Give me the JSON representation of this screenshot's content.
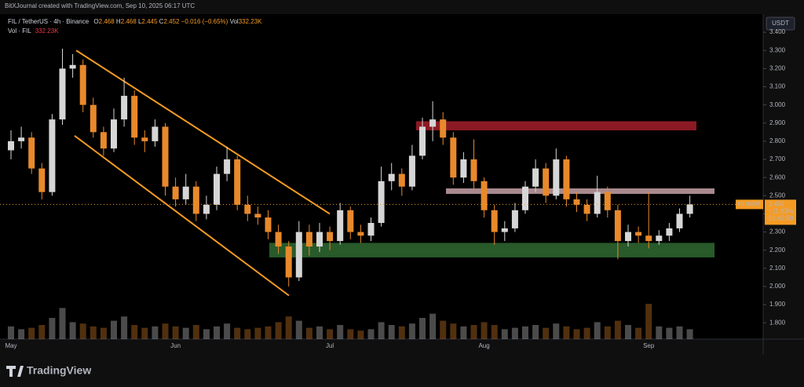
{
  "chart_data": {
    "type": "candlestick",
    "watermark": "BitXJournal created with TradingView.com, Sep 10, 2025 06:17 UTC",
    "symbol": "FIL / TetherUS · 4h · Binance",
    "ohlc_legend": {
      "open_label": "O",
      "open": 2.468,
      "high_label": "H",
      "high": 2.468,
      "low_label": "L",
      "low": 2.445,
      "close_label": "C",
      "close": 2.452,
      "change": "−0.016 (−0.65%)",
      "vol_label": "Vol",
      "vol": "332.23K"
    },
    "volume_legend": {
      "label": "Vol · FIL",
      "value": "332.23K"
    },
    "currency": "USDT",
    "price_tag": {
      "symbol": "FILUSDT",
      "price": 2.452,
      "change": "−11.83%",
      "countdown": "01:42:50"
    },
    "logo": "TradingView",
    "categories": [
      "May",
      null,
      null,
      null,
      null,
      null,
      null,
      null,
      null,
      null,
      null,
      null,
      null,
      null,
      null,
      null,
      "Jun",
      null,
      null,
      null,
      null,
      null,
      null,
      null,
      null,
      null,
      null,
      null,
      null,
      null,
      null,
      "Jul",
      null,
      null,
      null,
      null,
      null,
      null,
      null,
      null,
      null,
      null,
      null,
      null,
      null,
      null,
      "Aug",
      null,
      null,
      null,
      null,
      null,
      null,
      null,
      null,
      null,
      null,
      null,
      null,
      null,
      null,
      null,
      "Sep",
      null,
      null,
      null,
      null
    ],
    "open": [
      2.75,
      2.8,
      2.82,
      2.65,
      2.52,
      2.92,
      3.2,
      3.22,
      3.0,
      2.85,
      2.76,
      2.92,
      3.05,
      2.82,
      2.8,
      2.88,
      2.55,
      2.48,
      2.55,
      2.4,
      2.45,
      2.62,
      2.7,
      2.45,
      2.4,
      2.38,
      2.3,
      2.22,
      2.05,
      2.3,
      2.22,
      2.3,
      2.25,
      2.42,
      2.3,
      2.28,
      2.35,
      2.58,
      2.62,
      2.55,
      2.72,
      2.88,
      2.92,
      2.82,
      2.6,
      2.7,
      2.58,
      2.42,
      2.3,
      2.32,
      2.42,
      2.55,
      2.65,
      2.5,
      2.7,
      2.48,
      2.45,
      2.4,
      2.52,
      2.42,
      2.25,
      2.3,
      2.28,
      2.25,
      2.28,
      2.32,
      2.4
    ],
    "high": [
      2.86,
      2.88,
      2.85,
      2.68,
      2.95,
      3.31,
      3.28,
      3.25,
      3.04,
      2.88,
      2.98,
      3.15,
      3.08,
      2.86,
      2.92,
      2.9,
      2.6,
      2.62,
      2.58,
      2.5,
      2.66,
      2.77,
      2.72,
      2.5,
      2.44,
      2.42,
      2.34,
      2.25,
      2.36,
      2.34,
      2.35,
      2.33,
      2.46,
      2.44,
      2.34,
      2.38,
      2.66,
      2.68,
      2.65,
      2.78,
      2.93,
      3.02,
      2.96,
      2.85,
      2.74,
      2.81,
      2.6,
      2.45,
      2.36,
      2.46,
      2.58,
      2.7,
      2.68,
      2.76,
      2.72,
      2.52,
      2.48,
      2.61,
      2.55,
      2.45,
      2.34,
      2.33,
      2.52,
      2.31,
      2.35,
      2.43,
      2.5
    ],
    "low": [
      2.7,
      2.76,
      2.62,
      2.48,
      2.5,
      2.89,
      3.15,
      2.96,
      2.82,
      2.72,
      2.74,
      2.88,
      2.78,
      2.74,
      2.77,
      2.5,
      2.44,
      2.45,
      2.36,
      2.37,
      2.42,
      2.58,
      2.42,
      2.36,
      2.34,
      2.26,
      2.18,
      2.0,
      2.03,
      2.17,
      2.19,
      2.2,
      2.23,
      2.26,
      2.24,
      2.25,
      2.33,
      2.53,
      2.5,
      2.53,
      2.7,
      2.8,
      2.78,
      2.56,
      2.57,
      2.54,
      2.38,
      2.23,
      2.25,
      2.3,
      2.4,
      2.52,
      2.46,
      2.48,
      2.44,
      2.41,
      2.36,
      2.38,
      2.38,
      2.15,
      2.22,
      2.24,
      2.21,
      2.23,
      2.25,
      2.3,
      2.38
    ],
    "close": [
      2.8,
      2.82,
      2.65,
      2.52,
      2.92,
      3.2,
      3.22,
      3.0,
      2.85,
      2.76,
      2.92,
      3.05,
      2.82,
      2.8,
      2.88,
      2.55,
      2.48,
      2.55,
      2.4,
      2.45,
      2.62,
      2.7,
      2.45,
      2.4,
      2.38,
      2.3,
      2.22,
      2.05,
      2.3,
      2.22,
      2.3,
      2.25,
      2.42,
      2.3,
      2.28,
      2.35,
      2.58,
      2.62,
      2.55,
      2.72,
      2.88,
      2.92,
      2.82,
      2.6,
      2.7,
      2.58,
      2.42,
      2.3,
      2.32,
      2.42,
      2.55,
      2.65,
      2.5,
      2.7,
      2.48,
      2.45,
      2.4,
      2.52,
      2.42,
      2.25,
      2.3,
      2.28,
      2.25,
      2.28,
      2.32,
      2.4,
      2.452
    ],
    "volume": [
      900,
      700,
      800,
      1000,
      1500,
      2200,
      1200,
      1100,
      900,
      800,
      1300,
      1600,
      1000,
      800,
      900,
      1100,
      900,
      800,
      1000,
      700,
      900,
      1100,
      800,
      700,
      800,
      900,
      1200,
      1600,
      1300,
      800,
      900,
      700,
      1000,
      700,
      600,
      700,
      1200,
      1000,
      900,
      1100,
      1500,
      1800,
      1300,
      1100,
      900,
      1000,
      1200,
      1000,
      700,
      800,
      900,
      1000,
      800,
      1100,
      900,
      700,
      800,
      1200,
      900,
      1300,
      1000,
      800,
      2500,
      900,
      800,
      900,
      700
    ],
    "up_color": "#d6d6d6",
    "down_color": "#e8892b",
    "zones": [
      {
        "low": 2.86,
        "high": 2.91,
        "color": "#a31f2c"
      },
      {
        "low": 2.51,
        "high": 2.54,
        "color": "#c7a2a7"
      },
      {
        "low": 2.16,
        "high": 2.24,
        "color": "#2f6a31"
      }
    ],
    "trendlines": [
      {
        "start": 3.3,
        "end": 2.4,
        "color": "#f59b23"
      },
      {
        "start": 2.83,
        "end": 1.95,
        "color": "#f59b23"
      }
    ],
    "ylim": [
      1.71,
      3.5
    ],
    "yticks": [
      {
        "value": 1.8,
        "label": "1.800"
      },
      {
        "value": 1.9,
        "label": "1.900"
      },
      {
        "value": 2.0,
        "label": "2.000"
      },
      {
        "value": 2.1,
        "label": "2.100"
      },
      {
        "value": 2.2,
        "label": "2.200"
      },
      {
        "value": 2.3,
        "label": "2.300"
      },
      {
        "value": 2.4,
        "label": "2.400"
      },
      {
        "value": 2.5,
        "label": "2.500"
      },
      {
        "value": 2.6,
        "label": "2.600"
      },
      {
        "value": 2.7,
        "label": "2.700"
      },
      {
        "value": 2.8,
        "label": "2.800"
      },
      {
        "value": 2.9,
        "label": "2.900"
      },
      {
        "value": 3.0,
        "label": "3.000"
      },
      {
        "value": 3.1,
        "label": "3.100"
      },
      {
        "value": 3.2,
        "label": "3.200"
      },
      {
        "value": 3.3,
        "label": "3.300"
      },
      {
        "value": 3.4,
        "label": "3.400"
      }
    ]
  }
}
